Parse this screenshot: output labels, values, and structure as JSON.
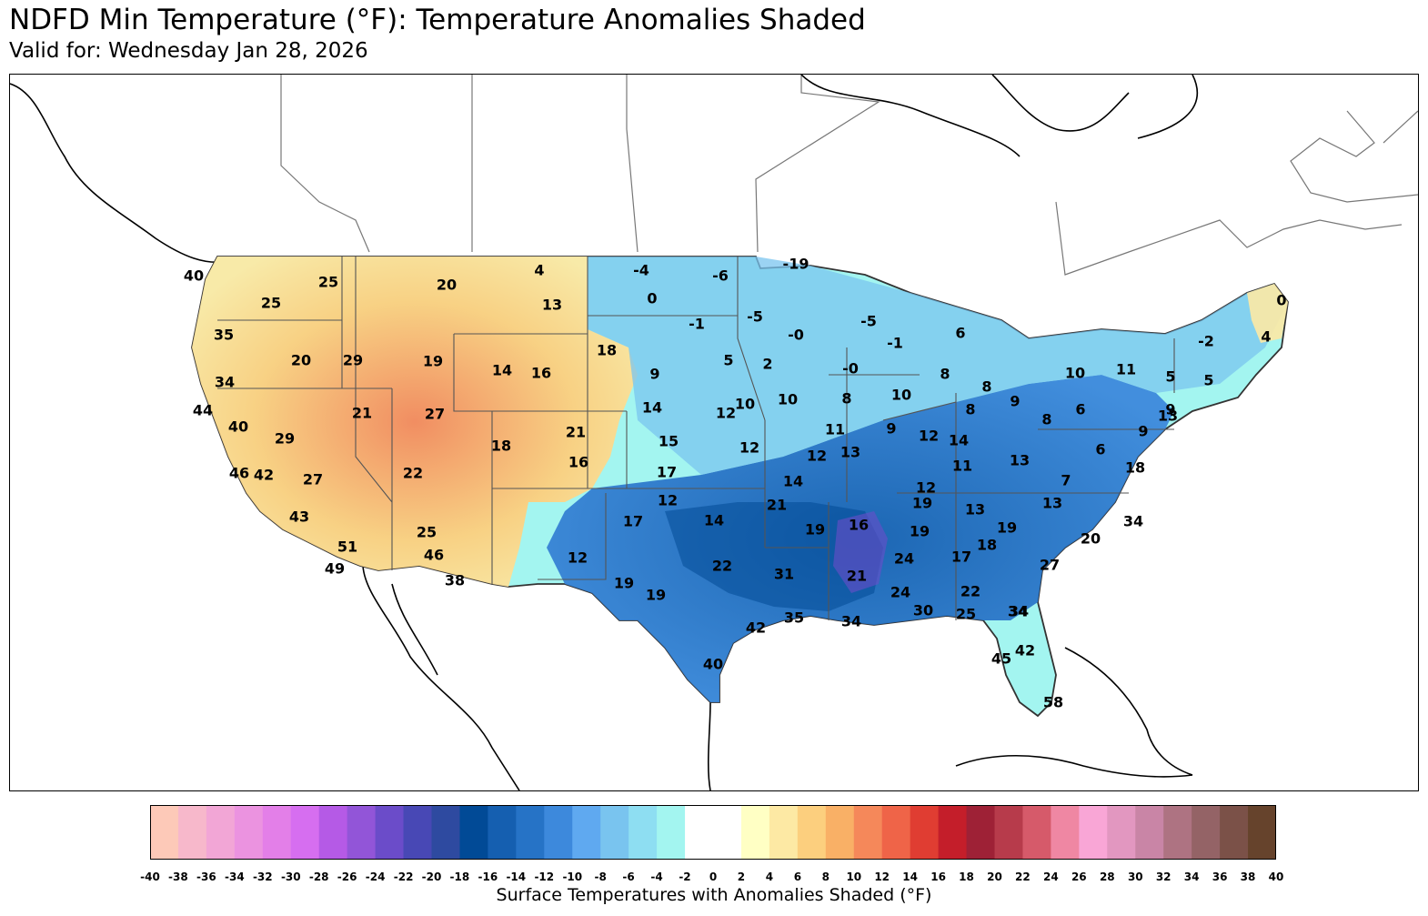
{
  "title": "NDFD Min Temperature (°F): Temperature Anomalies Shaded",
  "subtitle": "Valid for: Wednesday Jan 28, 2026",
  "colorbar": {
    "label": "Surface Temperatures with Anomalies Shaded (°F)",
    "ticks": [
      "-40",
      "-38",
      "-36",
      "-34",
      "-32",
      "-30",
      "-28",
      "-26",
      "-24",
      "-22",
      "-20",
      "-18",
      "-16",
      "-14",
      "-12",
      "-10",
      "-8",
      "-6",
      "-4",
      "-2",
      "0",
      "2",
      "4",
      "6",
      "8",
      "10",
      "12",
      "14",
      "16",
      "18",
      "20",
      "22",
      "24",
      "26",
      "28",
      "30",
      "32",
      "34",
      "36",
      "38",
      "40"
    ],
    "colors": [
      "#fdc9b8",
      "#f7b8cb",
      "#f2a6d6",
      "#eb93e0",
      "#e37fe8",
      "#d66ef0",
      "#b55ae6",
      "#9255d8",
      "#6b4cc9",
      "#4848b5",
      "#2e4aa0",
      "#014a96",
      "#155fb0",
      "#2673c6",
      "#3d89dc",
      "#5fa9f0",
      "#79c4ef",
      "#8edef2",
      "#a3f5f0",
      "#ffffff",
      "#ffffff",
      "#ffffc4",
      "#fde9a4",
      "#fccf7e",
      "#f9b066",
      "#f5885a",
      "#ef6448",
      "#e03d32",
      "#c41e2a",
      "#9e2136",
      "#b73b4b",
      "#d65a6a",
      "#ef87a3",
      "#f9a6d6",
      "#e297c0",
      "#c985a6",
      "#ae7382",
      "#946366",
      "#7b5148",
      "#66432c"
    ]
  },
  "map": {
    "labels": [
      {
        "t": "40",
        "v": 40
      },
      {
        "t": "25",
        "v": 25
      },
      {
        "t": "20",
        "v": 20
      },
      {
        "t": "4",
        "v": 4
      },
      {
        "t": "-4",
        "v": -4
      },
      {
        "t": "-6",
        "v": -6
      },
      {
        "t": "-19",
        "v": -19
      },
      {
        "t": "25",
        "v": 25
      },
      {
        "t": "13",
        "v": 13
      },
      {
        "t": "0",
        "v": 0
      },
      {
        "t": "35",
        "v": 35
      },
      {
        "t": "-1",
        "v": -1
      },
      {
        "t": "-5",
        "v": -5
      },
      {
        "t": "-0",
        "v": 0
      },
      {
        "t": "-5",
        "v": -5
      },
      {
        "t": "6",
        "v": 6
      },
      {
        "t": "0",
        "v": 0
      },
      {
        "t": "20",
        "v": 20
      },
      {
        "t": "29",
        "v": 29
      },
      {
        "t": "19",
        "v": 19
      },
      {
        "t": "18",
        "v": 18
      },
      {
        "t": "-1",
        "v": -1
      },
      {
        "t": "-2",
        "v": -2
      },
      {
        "t": "4",
        "v": 4
      },
      {
        "t": "34",
        "v": 34
      },
      {
        "t": "14",
        "v": 14
      },
      {
        "t": "16",
        "v": 16
      },
      {
        "t": "5",
        "v": 5
      },
      {
        "t": "2",
        "v": 2
      },
      {
        "t": "-0",
        "v": 0
      },
      {
        "t": "9",
        "v": 9
      },
      {
        "t": "10",
        "v": 10
      },
      {
        "t": "11",
        "v": 11
      },
      {
        "t": "5",
        "v": 5
      },
      {
        "t": "5",
        "v": 5
      },
      {
        "t": "8",
        "v": 8
      },
      {
        "t": "8",
        "v": 8
      },
      {
        "t": "44",
        "v": 44
      },
      {
        "t": "21",
        "v": 21
      },
      {
        "t": "27",
        "v": 27
      },
      {
        "t": "14",
        "v": 14
      },
      {
        "t": "12",
        "v": 12
      },
      {
        "t": "10",
        "v": 10
      },
      {
        "t": "10",
        "v": 10
      },
      {
        "t": "8",
        "v": 8
      },
      {
        "t": "10",
        "v": 10
      },
      {
        "t": "8",
        "v": 8
      },
      {
        "t": "9",
        "v": 9
      },
      {
        "t": "6",
        "v": 6
      },
      {
        "t": "9",
        "v": 9
      },
      {
        "t": "40",
        "v": 40
      },
      {
        "t": "21",
        "v": 21
      },
      {
        "t": "8",
        "v": 8
      },
      {
        "t": "13",
        "v": 13
      },
      {
        "t": "29",
        "v": 29
      },
      {
        "t": "15",
        "v": 15
      },
      {
        "t": "11",
        "v": 11
      },
      {
        "t": "9",
        "v": 9
      },
      {
        "t": "12",
        "v": 12
      },
      {
        "t": "14",
        "v": 14
      },
      {
        "t": "9",
        "v": 9
      },
      {
        "t": "18",
        "v": 18
      },
      {
        "t": "12",
        "v": 12
      },
      {
        "t": "12",
        "v": 12
      },
      {
        "t": "13",
        "v": 13
      },
      {
        "t": "6",
        "v": 6
      },
      {
        "t": "46",
        "v": 46
      },
      {
        "t": "42",
        "v": 42
      },
      {
        "t": "27",
        "v": 27
      },
      {
        "t": "22",
        "v": 22
      },
      {
        "t": "16",
        "v": 16
      },
      {
        "t": "17",
        "v": 17
      },
      {
        "t": "14",
        "v": 14
      },
      {
        "t": "11",
        "v": 11
      },
      {
        "t": "13",
        "v": 13
      },
      {
        "t": "18",
        "v": 18
      },
      {
        "t": "12",
        "v": 12
      },
      {
        "t": "12",
        "v": 12
      },
      {
        "t": "7",
        "v": 7
      },
      {
        "t": "21",
        "v": 21
      },
      {
        "t": "19",
        "v": 19
      },
      {
        "t": "13",
        "v": 13
      },
      {
        "t": "43",
        "v": 43
      },
      {
        "t": "17",
        "v": 17
      },
      {
        "t": "14",
        "v": 14
      },
      {
        "t": "19",
        "v": 19
      },
      {
        "t": "16",
        "v": 16
      },
      {
        "t": "13",
        "v": 13
      },
      {
        "t": "19",
        "v": 19
      },
      {
        "t": "25",
        "v": 25
      },
      {
        "t": "19",
        "v": 19
      },
      {
        "t": "34",
        "v": 34
      },
      {
        "t": "51",
        "v": 51
      },
      {
        "t": "20",
        "v": 20
      },
      {
        "t": "46",
        "v": 46
      },
      {
        "t": "12",
        "v": 12
      },
      {
        "t": "24",
        "v": 24
      },
      {
        "t": "17",
        "v": 17
      },
      {
        "t": "18",
        "v": 18
      },
      {
        "t": "49",
        "v": 49
      },
      {
        "t": "22",
        "v": 22
      },
      {
        "t": "27",
        "v": 27
      },
      {
        "t": "38",
        "v": 38
      },
      {
        "t": "31",
        "v": 31
      },
      {
        "t": "21",
        "v": 21
      },
      {
        "t": "19",
        "v": 19
      },
      {
        "t": "19",
        "v": 19
      },
      {
        "t": "24",
        "v": 24
      },
      {
        "t": "22",
        "v": 22
      },
      {
        "t": "30",
        "v": 30
      },
      {
        "t": "25",
        "v": 25
      },
      {
        "t": "34",
        "v": 34
      },
      {
        "t": "34",
        "v": 34
      },
      {
        "t": "42",
        "v": 42
      },
      {
        "t": "35",
        "v": 35
      },
      {
        "t": "34",
        "v": 34
      },
      {
        "t": "42",
        "v": 42
      },
      {
        "t": "45",
        "v": 45
      },
      {
        "t": "40",
        "v": 40
      },
      {
        "t": "58",
        "v": 58
      }
    ]
  }
}
